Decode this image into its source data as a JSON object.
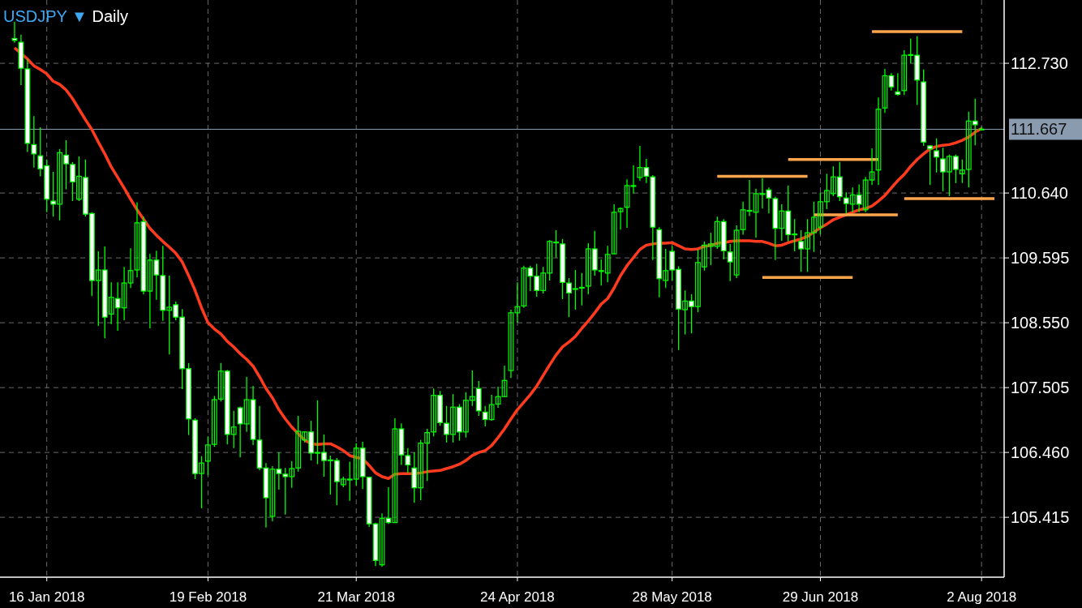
{
  "chart_data": {
    "type": "candlestick",
    "title": "USDJPY ▼ Daily",
    "color": "#00ff00",
    "grid": true,
    "ylim": [
      104.45,
      113.75
    ],
    "yticks": [
      105.415,
      {
        "value": 106.46,
        "label": "106.460"
      },
      107.505,
      {
        "value": 108.55,
        "label": "108.550"
      },
      109.595,
      {
        "value": 110.64,
        "label": "110.640"
      },
      {
        "value": 112.73,
        "label": "112.730"
      }
    ],
    "categories": [
      null,
      null,
      null,
      null,
      null,
      "16 Jan 2018",
      null,
      null,
      null,
      null,
      null,
      null,
      null,
      null,
      null,
      null,
      null,
      null,
      null,
      null,
      null,
      null,
      null,
      null,
      null,
      null,
      null,
      null,
      null,
      null,
      "19 Feb 2018",
      null,
      null,
      null,
      null,
      null,
      null,
      null,
      null,
      null,
      null,
      null,
      null,
      null,
      null,
      null,
      null,
      null,
      null,
      null,
      null,
      null,
      null,
      "21 Mar 2018",
      null,
      null,
      null,
      null,
      null,
      null,
      null,
      null,
      null,
      null,
      null,
      null,
      null,
      null,
      null,
      null,
      null,
      null,
      null,
      null,
      null,
      null,
      null,
      null,
      "24 Apr 2018",
      null,
      null,
      null,
      null,
      null,
      null,
      null,
      null,
      null,
      null,
      null,
      null,
      null,
      null,
      null,
      null,
      null,
      null,
      null,
      null,
      null,
      null,
      null,
      "28 May 2018",
      null,
      null,
      null,
      null,
      null,
      null,
      null,
      null,
      null,
      null,
      null,
      null,
      null,
      null,
      null,
      null,
      null,
      null,
      null,
      null,
      null,
      null,
      "29 Jun 2018",
      null,
      null,
      null,
      null,
      null,
      null,
      null,
      null,
      null,
      null,
      null,
      null,
      null,
      null,
      null,
      null,
      null,
      null,
      null,
      null,
      null,
      null,
      null,
      null,
      "2 Aug 2018",
      null,
      null,
      null
    ],
    "ohlc": [
      [
        113.13,
        113.4,
        113.06,
        113.1
      ],
      [
        113.07,
        113.19,
        112.38,
        112.65
      ],
      [
        112.64,
        112.8,
        111.3,
        111.44
      ],
      [
        111.42,
        111.88,
        111.05,
        111.27
      ],
      [
        111.24,
        111.7,
        110.91,
        111.03
      ],
      [
        111.08,
        111.18,
        110.33,
        110.54
      ],
      [
        110.51,
        110.98,
        110.26,
        110.46
      ],
      [
        110.46,
        111.35,
        110.2,
        111.29
      ],
      [
        111.25,
        111.49,
        110.7,
        111.11
      ],
      [
        111.1,
        111.14,
        110.51,
        110.82
      ],
      [
        110.54,
        111.23,
        110.51,
        110.91
      ],
      [
        110.89,
        111.18,
        110.26,
        110.3
      ],
      [
        110.31,
        110.33,
        108.98,
        109.23
      ],
      [
        109.23,
        109.7,
        108.5,
        109.4
      ],
      [
        109.4,
        109.78,
        108.3,
        108.64
      ],
      [
        108.69,
        109.2,
        108.53,
        108.96
      ],
      [
        108.94,
        109.2,
        108.42,
        108.79
      ],
      [
        108.79,
        109.45,
        108.59,
        109.19
      ],
      [
        109.19,
        109.75,
        109.11,
        109.39
      ],
      [
        109.4,
        110.49,
        109.28,
        110.16
      ],
      [
        110.18,
        110.26,
        109.01,
        109.06
      ],
      [
        109.06,
        109.66,
        108.46,
        109.56
      ],
      [
        109.56,
        109.71,
        108.92,
        109.32
      ],
      [
        109.31,
        109.79,
        108.58,
        108.75
      ],
      [
        108.75,
        109.31,
        108.04,
        108.8
      ],
      [
        108.84,
        108.89,
        108.59,
        108.64
      ],
      [
        108.64,
        108.77,
        107.48,
        107.81
      ],
      [
        107.81,
        107.9,
        106.74,
        107.0
      ],
      [
        106.98,
        107.01,
        106.03,
        106.12
      ],
      [
        106.12,
        106.4,
        105.56,
        106.29
      ],
      [
        106.32,
        106.72,
        106.09,
        106.58
      ],
      [
        106.59,
        107.37,
        106.55,
        107.31
      ],
      [
        107.32,
        107.9,
        107.28,
        107.77
      ],
      [
        107.77,
        107.79,
        106.59,
        106.75
      ],
      [
        106.75,
        107.13,
        106.53,
        106.87
      ],
      [
        107.18,
        107.2,
        106.38,
        106.92
      ],
      [
        106.92,
        107.68,
        106.79,
        107.31
      ],
      [
        107.31,
        107.53,
        106.58,
        106.67
      ],
      [
        106.66,
        107.21,
        106.17,
        106.21
      ],
      [
        106.21,
        106.29,
        105.25,
        105.73
      ],
      [
        105.43,
        106.24,
        105.35,
        106.19
      ],
      [
        106.19,
        106.46,
        105.86,
        106.12
      ],
      [
        106.11,
        106.21,
        105.46,
        106.07
      ],
      [
        106.07,
        106.32,
        105.89,
        106.2
      ],
      [
        106.21,
        107.05,
        106.15,
        106.8
      ],
      [
        106.66,
        106.8,
        106.62,
        106.79
      ],
      [
        106.79,
        106.97,
        106.33,
        106.45
      ],
      [
        106.45,
        107.3,
        106.27,
        106.46
      ],
      [
        106.46,
        106.75,
        106.07,
        106.33
      ],
      [
        106.34,
        106.41,
        105.78,
        106.33
      ],
      [
        106.33,
        106.37,
        105.61,
        105.99
      ],
      [
        105.94,
        106.07,
        105.9,
        106.03
      ],
      [
        106.03,
        106.31,
        105.68,
        106.03
      ],
      [
        106.03,
        106.61,
        105.93,
        106.53
      ],
      [
        106.53,
        106.63,
        105.87,
        106.07
      ],
      [
        106.06,
        106.07,
        105.26,
        105.31
      ],
      [
        105.31,
        105.33,
        104.63,
        104.72
      ],
      [
        104.65,
        105.48,
        104.62,
        105.4
      ],
      [
        105.4,
        105.9,
        105.31,
        105.33
      ],
      [
        105.33,
        107.01,
        105.33,
        106.84
      ],
      [
        106.84,
        106.93,
        106.26,
        106.42
      ],
      [
        106.41,
        106.53,
        106.13,
        106.26
      ],
      [
        106.21,
        106.46,
        105.65,
        105.89
      ],
      [
        105.89,
        106.66,
        105.69,
        106.61
      ],
      [
        106.61,
        106.84,
        106.0,
        106.78
      ],
      [
        106.79,
        107.49,
        106.72,
        107.38
      ],
      [
        107.38,
        107.45,
        106.89,
        106.94
      ],
      [
        106.93,
        107.21,
        106.62,
        106.75
      ],
      [
        106.75,
        107.4,
        106.62,
        107.19
      ],
      [
        107.19,
        107.24,
        106.65,
        106.79
      ],
      [
        106.79,
        107.43,
        106.7,
        107.3
      ],
      [
        107.3,
        107.78,
        107.21,
        107.36
      ],
      [
        107.49,
        107.61,
        107.05,
        107.13
      ],
      [
        107.11,
        107.21,
        106.88,
        106.99
      ],
      [
        106.99,
        107.39,
        106.97,
        107.23
      ],
      [
        107.24,
        107.52,
        107.18,
        107.36
      ],
      [
        107.36,
        107.86,
        107.35,
        107.62
      ],
      [
        107.78,
        108.76,
        107.66,
        108.71
      ],
      [
        108.71,
        109.2,
        108.55,
        108.81
      ],
      [
        108.82,
        109.47,
        108.79,
        109.43
      ],
      [
        109.43,
        109.47,
        109.06,
        109.3
      ],
      [
        109.3,
        109.5,
        108.97,
        109.07
      ],
      [
        109.07,
        109.45,
        109.02,
        109.35
      ],
      [
        109.35,
        109.88,
        109.23,
        109.86
      ],
      [
        109.84,
        110.04,
        109.6,
        109.85
      ],
      [
        109.82,
        109.9,
        108.93,
        109.2
      ],
      [
        109.19,
        109.27,
        108.64,
        109.03
      ],
      [
        109.1,
        109.4,
        108.76,
        109.1
      ],
      [
        109.11,
        109.35,
        108.83,
        109.12
      ],
      [
        109.14,
        109.83,
        109.01,
        109.74
      ],
      [
        109.74,
        110.03,
        109.31,
        109.4
      ],
      [
        109.38,
        109.57,
        109.15,
        109.39
      ],
      [
        109.35,
        109.79,
        109.2,
        109.65
      ],
      [
        109.66,
        110.46,
        109.66,
        110.33
      ],
      [
        110.34,
        110.41,
        110.05,
        110.39
      ],
      [
        110.41,
        110.86,
        110.08,
        110.76
      ],
      [
        110.76,
        111.09,
        110.63,
        110.76
      ],
      [
        110.89,
        111.4,
        110.84,
        111.05
      ],
      [
        111.05,
        111.19,
        110.8,
        110.91
      ],
      [
        110.9,
        110.93,
        109.56,
        110.09
      ],
      [
        110.05,
        110.09,
        108.96,
        109.26
      ],
      [
        109.23,
        109.74,
        109.11,
        109.39
      ],
      [
        109.7,
        109.79,
        109.23,
        109.4
      ],
      [
        109.41,
        109.46,
        108.11,
        108.77
      ],
      [
        108.76,
        109.07,
        108.36,
        108.9
      ],
      [
        108.9,
        109.01,
        108.38,
        108.81
      ],
      [
        108.81,
        109.73,
        108.72,
        109.52
      ],
      [
        109.45,
        109.86,
        109.39,
        109.8
      ],
      [
        109.78,
        110.0,
        109.48,
        109.82
      ],
      [
        109.78,
        110.26,
        109.74,
        110.18
      ],
      [
        110.18,
        110.22,
        109.57,
        109.71
      ],
      [
        109.69,
        109.82,
        109.22,
        109.53
      ],
      [
        109.32,
        110.12,
        109.27,
        110.04
      ],
      [
        110.05,
        110.5,
        109.97,
        110.37
      ],
      [
        110.35,
        110.85,
        110.27,
        110.36
      ],
      [
        110.33,
        110.71,
        109.92,
        110.63
      ],
      [
        110.62,
        110.88,
        110.39,
        110.63
      ],
      [
        110.69,
        110.73,
        110.31,
        110.56
      ],
      [
        110.55,
        110.58,
        109.56,
        110.07
      ],
      [
        110.07,
        110.46,
        109.87,
        110.35
      ],
      [
        110.35,
        110.76,
        109.86,
        109.97
      ],
      [
        109.97,
        110.22,
        109.7,
        109.98
      ],
      [
        109.86,
        110.04,
        109.37,
        109.74
      ],
      [
        109.74,
        110.22,
        109.37,
        110.0
      ],
      [
        110.0,
        110.5,
        109.69,
        110.25
      ],
      [
        110.09,
        110.65,
        109.97,
        110.5
      ],
      [
        110.5,
        110.95,
        110.38,
        110.68
      ],
      [
        110.63,
        111.07,
        110.59,
        110.9
      ],
      [
        110.9,
        111.14,
        110.51,
        110.58
      ],
      [
        110.56,
        110.65,
        110.31,
        110.47
      ],
      [
        110.46,
        110.73,
        110.33,
        110.61
      ],
      [
        110.61,
        110.78,
        110.33,
        110.46
      ],
      [
        110.37,
        110.9,
        110.33,
        110.85
      ],
      [
        110.85,
        111.36,
        110.77,
        110.98
      ],
      [
        111.01,
        112.18,
        110.77,
        111.99
      ],
      [
        112.01,
        112.64,
        111.93,
        112.53
      ],
      [
        112.53,
        112.57,
        112.29,
        112.35
      ],
      [
        112.27,
        112.57,
        112.21,
        112.23
      ],
      [
        112.29,
        112.94,
        112.22,
        112.86
      ],
      [
        112.86,
        113.13,
        112.73,
        112.87
      ],
      [
        112.86,
        113.17,
        112.06,
        112.46
      ],
      [
        112.43,
        112.63,
        111.4,
        111.46
      ],
      [
        111.4,
        111.41,
        110.77,
        111.35
      ],
      [
        111.32,
        111.52,
        110.97,
        111.22
      ],
      [
        111.19,
        111.37,
        110.67,
        110.98
      ],
      [
        110.98,
        111.26,
        110.59,
        111.23
      ],
      [
        111.23,
        111.26,
        110.8,
        111.02
      ],
      [
        110.95,
        111.18,
        110.8,
        111.01
      ],
      [
        111.02,
        111.95,
        110.73,
        111.8
      ],
      [
        111.8,
        112.16,
        111.41,
        111.74
      ],
      [
        111.66,
        111.71,
        111.65,
        111.67
      ],
      null,
      null,
      null
    ],
    "series": [
      {
        "type": "line",
        "color": "#ff3b1f",
        "values": [
          112.98,
          112.89,
          112.8,
          112.69,
          112.63,
          112.56,
          112.44,
          112.39,
          112.3,
          112.16,
          111.99,
          111.82,
          111.66,
          111.46,
          111.27,
          111.06,
          110.89,
          110.72,
          110.54,
          110.37,
          110.22,
          110.07,
          109.96,
          109.86,
          109.77,
          109.67,
          109.53,
          109.31,
          109.07,
          108.79,
          108.55,
          108.45,
          108.37,
          108.25,
          108.16,
          108.05,
          107.96,
          107.85,
          107.68,
          107.49,
          107.34,
          107.15,
          107.0,
          106.87,
          106.76,
          106.66,
          106.6,
          106.59,
          106.6,
          106.6,
          106.55,
          106.49,
          106.41,
          106.38,
          106.36,
          106.25,
          106.13,
          106.07,
          106.04,
          106.11,
          106.12,
          106.12,
          106.12,
          106.13,
          106.15,
          106.16,
          106.17,
          106.2,
          106.23,
          106.27,
          106.33,
          106.41,
          106.46,
          106.49,
          106.57,
          106.7,
          106.84,
          107.0,
          107.15,
          107.27,
          107.39,
          107.53,
          107.7,
          107.87,
          108.03,
          108.16,
          108.24,
          108.33,
          108.46,
          108.58,
          108.71,
          108.85,
          108.94,
          109.11,
          109.31,
          109.47,
          109.6,
          109.73,
          109.8,
          109.82,
          109.83,
          109.83,
          109.84,
          109.79,
          109.74,
          109.73,
          109.74,
          109.78,
          109.8,
          109.83,
          109.84,
          109.86,
          109.87,
          109.87,
          109.87,
          109.86,
          109.86,
          109.83,
          109.79,
          109.8,
          109.84,
          109.87,
          109.9,
          109.94,
          110.01,
          110.08,
          110.14,
          110.21,
          110.25,
          110.29,
          110.33,
          110.37,
          110.39,
          110.43,
          110.51,
          110.6,
          110.72,
          110.84,
          110.94,
          111.07,
          111.18,
          111.27,
          111.35,
          111.39,
          111.41,
          111.42,
          111.45,
          111.49,
          111.54,
          111.62,
          111.68,
          null,
          null,
          null
        ]
      },
      {
        "type": "line",
        "color": "#ffa64d",
        "values": [
          null,
          null,
          null,
          null,
          null,
          null,
          null,
          null,
          null,
          null,
          null,
          null,
          null,
          null,
          null,
          null,
          null,
          null,
          null,
          null,
          null,
          null,
          null,
          null,
          null,
          null,
          null,
          null,
          null,
          null,
          null,
          null,
          null,
          null,
          null,
          null,
          null,
          null,
          null,
          null,
          null,
          null,
          null,
          null,
          null,
          null,
          null,
          null,
          null,
          null,
          null,
          null,
          null,
          null,
          null,
          null,
          null,
          null,
          null,
          null,
          null,
          null,
          null,
          null,
          null,
          null,
          null,
          null,
          null,
          null,
          null,
          null,
          null,
          null,
          null,
          null,
          null,
          null,
          null,
          null,
          null,
          null,
          null,
          null,
          null,
          null,
          null,
          null,
          null,
          null,
          null,
          null,
          null,
          null,
          null,
          null,
          null,
          null,
          null,
          null,
          null,
          null,
          null,
          null,
          null,
          null,
          null,
          null,
          null,
          null,
          null,
          null,
          null,
          null,
          null,
          null,
          null,
          null,
          null,
          null,
          null,
          null,
          null,
          null,
          null,
          null,
          null,
          null,
          null,
          null,
          null,
          null,
          null,
          113.24,
          113.24,
          113.24,
          113.24,
          113.24,
          113.24,
          113.24,
          113.24,
          113.24,
          113.24,
          113.24,
          113.24,
          113.24,
          113.24,
          113.24,
          null,
          null,
          null,
          null,
          null,
          null
        ]
      },
      {
        "type": "line",
        "color": "#ffa64d",
        "values": [
          null,
          null,
          null,
          null,
          null,
          null,
          null,
          null,
          null,
          null,
          null,
          null,
          null,
          null,
          null,
          null,
          null,
          null,
          null,
          null,
          null,
          null,
          null,
          null,
          null,
          null,
          null,
          null,
          null,
          null,
          null,
          null,
          null,
          null,
          null,
          null,
          null,
          null,
          null,
          null,
          null,
          null,
          null,
          null,
          null,
          null,
          null,
          null,
          null,
          null,
          null,
          null,
          null,
          null,
          null,
          null,
          null,
          null,
          null,
          null,
          null,
          null,
          null,
          null,
          null,
          null,
          null,
          null,
          null,
          null,
          null,
          null,
          null,
          null,
          null,
          null,
          null,
          null,
          null,
          null,
          null,
          null,
          null,
          null,
          null,
          null,
          null,
          null,
          null,
          null,
          null,
          null,
          null,
          null,
          null,
          null,
          null,
          null,
          null,
          null,
          null,
          null,
          null,
          null,
          null,
          null,
          null,
          null,
          null,
          110.91,
          110.91,
          110.91,
          110.91,
          110.91,
          110.91,
          110.91,
          110.91,
          110.91,
          110.91,
          110.91,
          110.91,
          110.91,
          110.91,
          110.91,
          null,
          null,
          null,
          null,
          null,
          null,
          null,
          null,
          null,
          null,
          null,
          null,
          null,
          null,
          null,
          null,
          null,
          null,
          null,
          null,
          null,
          null,
          null,
          null,
          null,
          null,
          null,
          null,
          null,
          null
        ]
      },
      {
        "type": "line",
        "color": "#ffa64d",
        "values": [
          null,
          null,
          null,
          null,
          null,
          null,
          null,
          null,
          null,
          null,
          null,
          null,
          null,
          null,
          null,
          null,
          null,
          null,
          null,
          null,
          null,
          null,
          null,
          null,
          null,
          null,
          null,
          null,
          null,
          null,
          null,
          null,
          null,
          null,
          null,
          null,
          null,
          null,
          null,
          null,
          null,
          null,
          null,
          null,
          null,
          null,
          null,
          null,
          null,
          null,
          null,
          null,
          null,
          null,
          null,
          null,
          null,
          null,
          null,
          null,
          null,
          null,
          null,
          null,
          null,
          null,
          null,
          null,
          null,
          null,
          null,
          null,
          null,
          null,
          null,
          null,
          null,
          null,
          null,
          null,
          null,
          null,
          null,
          null,
          null,
          null,
          null,
          null,
          null,
          null,
          null,
          null,
          null,
          null,
          null,
          null,
          null,
          null,
          null,
          null,
          null,
          null,
          null,
          null,
          null,
          null,
          null,
          null,
          null,
          null,
          null,
          null,
          null,
          null,
          null,
          null,
          null,
          null,
          null,
          null,
          111.18,
          111.18,
          111.18,
          111.18,
          111.18,
          111.18,
          111.18,
          111.18,
          111.18,
          111.18,
          111.18,
          111.18,
          111.18,
          111.18,
          111.18,
          null,
          null,
          null,
          null,
          null,
          null,
          null,
          null,
          null,
          null,
          null,
          null,
          null,
          null,
          null,
          null,
          null,
          null,
          null
        ]
      },
      {
        "type": "line",
        "color": "#ffa64d",
        "values": [
          null,
          null,
          null,
          null,
          null,
          null,
          null,
          null,
          null,
          null,
          null,
          null,
          null,
          null,
          null,
          null,
          null,
          null,
          null,
          null,
          null,
          null,
          null,
          null,
          null,
          null,
          null,
          null,
          null,
          null,
          null,
          null,
          null,
          null,
          null,
          null,
          null,
          null,
          null,
          null,
          null,
          null,
          null,
          null,
          null,
          null,
          null,
          null,
          null,
          null,
          null,
          null,
          null,
          null,
          null,
          null,
          null,
          null,
          null,
          null,
          null,
          null,
          null,
          null,
          null,
          null,
          null,
          null,
          null,
          null,
          null,
          null,
          null,
          null,
          null,
          null,
          null,
          null,
          null,
          null,
          null,
          null,
          null,
          null,
          null,
          null,
          null,
          null,
          null,
          null,
          null,
          null,
          null,
          null,
          null,
          null,
          null,
          null,
          null,
          null,
          null,
          null,
          null,
          null,
          null,
          null,
          null,
          null,
          null,
          null,
          null,
          null,
          null,
          null,
          null,
          null,
          null,
          null,
          null,
          null,
          null,
          null,
          null,
          null,
          110.29,
          110.29,
          110.29,
          110.29,
          110.29,
          110.29,
          110.29,
          110.29,
          110.29,
          110.29,
          110.29,
          110.29,
          110.29,
          110.29,
          null,
          null,
          null,
          null,
          null,
          null,
          null,
          null,
          null,
          null,
          null,
          null,
          null,
          null,
          null,
          null
        ]
      },
      {
        "type": "line",
        "color": "#ffa64d",
        "values": [
          null,
          null,
          null,
          null,
          null,
          null,
          null,
          null,
          null,
          null,
          null,
          null,
          null,
          null,
          null,
          null,
          null,
          null,
          null,
          null,
          null,
          null,
          null,
          null,
          null,
          null,
          null,
          null,
          null,
          null,
          null,
          null,
          null,
          null,
          null,
          null,
          null,
          null,
          null,
          null,
          null,
          null,
          null,
          null,
          null,
          null,
          null,
          null,
          null,
          null,
          null,
          null,
          null,
          null,
          null,
          null,
          null,
          null,
          null,
          null,
          null,
          null,
          null,
          null,
          null,
          null,
          null,
          null,
          null,
          null,
          null,
          null,
          null,
          null,
          null,
          null,
          null,
          null,
          null,
          null,
          null,
          null,
          null,
          null,
          null,
          null,
          null,
          null,
          null,
          null,
          null,
          null,
          null,
          null,
          null,
          null,
          null,
          null,
          null,
          null,
          null,
          null,
          null,
          null,
          null,
          null,
          null,
          null,
          null,
          null,
          null,
          null,
          null,
          null,
          null,
          null,
          109.28,
          109.28,
          109.28,
          109.28,
          109.28,
          109.28,
          109.28,
          109.28,
          109.28,
          109.28,
          109.28,
          109.28,
          109.28,
          109.28,
          109.28,
          null,
          null,
          null,
          null,
          null,
          null,
          null,
          null,
          null,
          null,
          null,
          null,
          null,
          null,
          null,
          null,
          null,
          null,
          null,
          null,
          null,
          null,
          null
        ]
      },
      {
        "type": "line",
        "color": "#ffa64d",
        "values": [
          null,
          null,
          null,
          null,
          null,
          null,
          null,
          null,
          null,
          null,
          null,
          null,
          null,
          null,
          null,
          null,
          null,
          null,
          null,
          null,
          null,
          null,
          null,
          null,
          null,
          null,
          null,
          null,
          null,
          null,
          null,
          null,
          null,
          null,
          null,
          null,
          null,
          null,
          null,
          null,
          null,
          null,
          null,
          null,
          null,
          null,
          null,
          null,
          null,
          null,
          null,
          null,
          null,
          null,
          null,
          null,
          null,
          null,
          null,
          null,
          null,
          null,
          null,
          null,
          null,
          null,
          null,
          null,
          null,
          null,
          null,
          null,
          null,
          null,
          null,
          null,
          null,
          null,
          null,
          null,
          null,
          null,
          null,
          null,
          null,
          null,
          null,
          null,
          null,
          null,
          null,
          null,
          null,
          null,
          null,
          null,
          null,
          null,
          null,
          null,
          null,
          null,
          null,
          null,
          null,
          null,
          null,
          null,
          null,
          null,
          null,
          null,
          null,
          null,
          null,
          null,
          null,
          null,
          null,
          null,
          null,
          null,
          null,
          null,
          null,
          null,
          null,
          null,
          null,
          null,
          null,
          null,
          null,
          null,
          null,
          null,
          null,
          null,
          110.55,
          110.55,
          110.55,
          110.55,
          110.55,
          110.55,
          110.55,
          110.55,
          110.55,
          110.55,
          110.55,
          110.55,
          110.55,
          110.55,
          110.55,
          null
        ]
      }
    ],
    "ref_lines": [
      {
        "axis": "y",
        "value": 111.667,
        "label": "111.667",
        "color": "#8a9bb0"
      }
    ]
  }
}
